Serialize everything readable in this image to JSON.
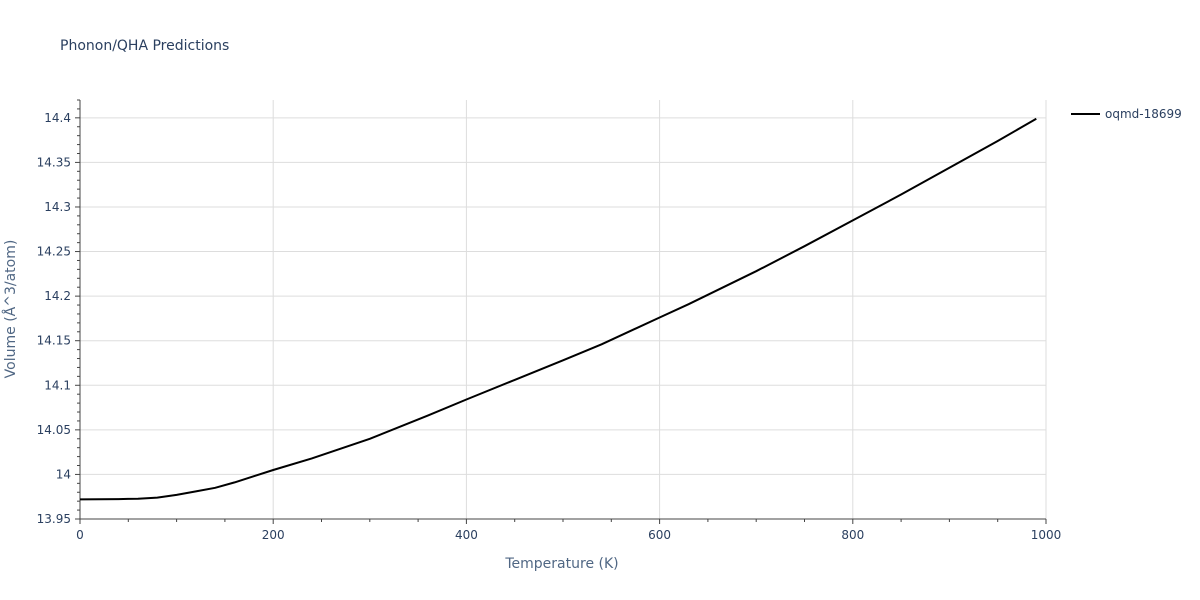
{
  "chart_data": {
    "type": "line",
    "title": "Phonon/QHA Predictions",
    "xlabel": "Temperature (K)",
    "ylabel": "Volume (Å^3/atom)",
    "xlim": [
      0,
      1000
    ],
    "ylim": [
      13.95,
      14.42
    ],
    "x_ticks": [
      0,
      200,
      400,
      600,
      800,
      1000
    ],
    "x_tick_labels": [
      "0",
      "200",
      "400",
      "600",
      "800",
      "1000"
    ],
    "y_ticks": [
      13.95,
      14,
      14.05,
      14.1,
      14.15,
      14.2,
      14.25,
      14.3,
      14.35,
      14.4
    ],
    "y_tick_labels": [
      "13.95",
      "14",
      "14.05",
      "14.1",
      "14.15",
      "14.2",
      "14.25",
      "14.3",
      "14.35",
      "14.4"
    ],
    "grid": true,
    "legend_position": "top-right",
    "series": [
      {
        "name": "oqmd-18699",
        "color": "#000000",
        "x": [
          0,
          20,
          40,
          60,
          80,
          100,
          120,
          140,
          160,
          180,
          200,
          240,
          300,
          360,
          400,
          450,
          500,
          540,
          600,
          630,
          700,
          750,
          800,
          850,
          900,
          950,
          990
        ],
        "y": [
          13.972,
          13.9722,
          13.9723,
          13.9728,
          13.974,
          13.977,
          13.981,
          13.985,
          13.991,
          13.998,
          14.005,
          14.018,
          14.04,
          14.066,
          14.084,
          14.106,
          14.128,
          14.146,
          14.176,
          14.191,
          14.228,
          14.256,
          14.285,
          14.314,
          14.344,
          14.374,
          14.399
        ]
      }
    ]
  }
}
